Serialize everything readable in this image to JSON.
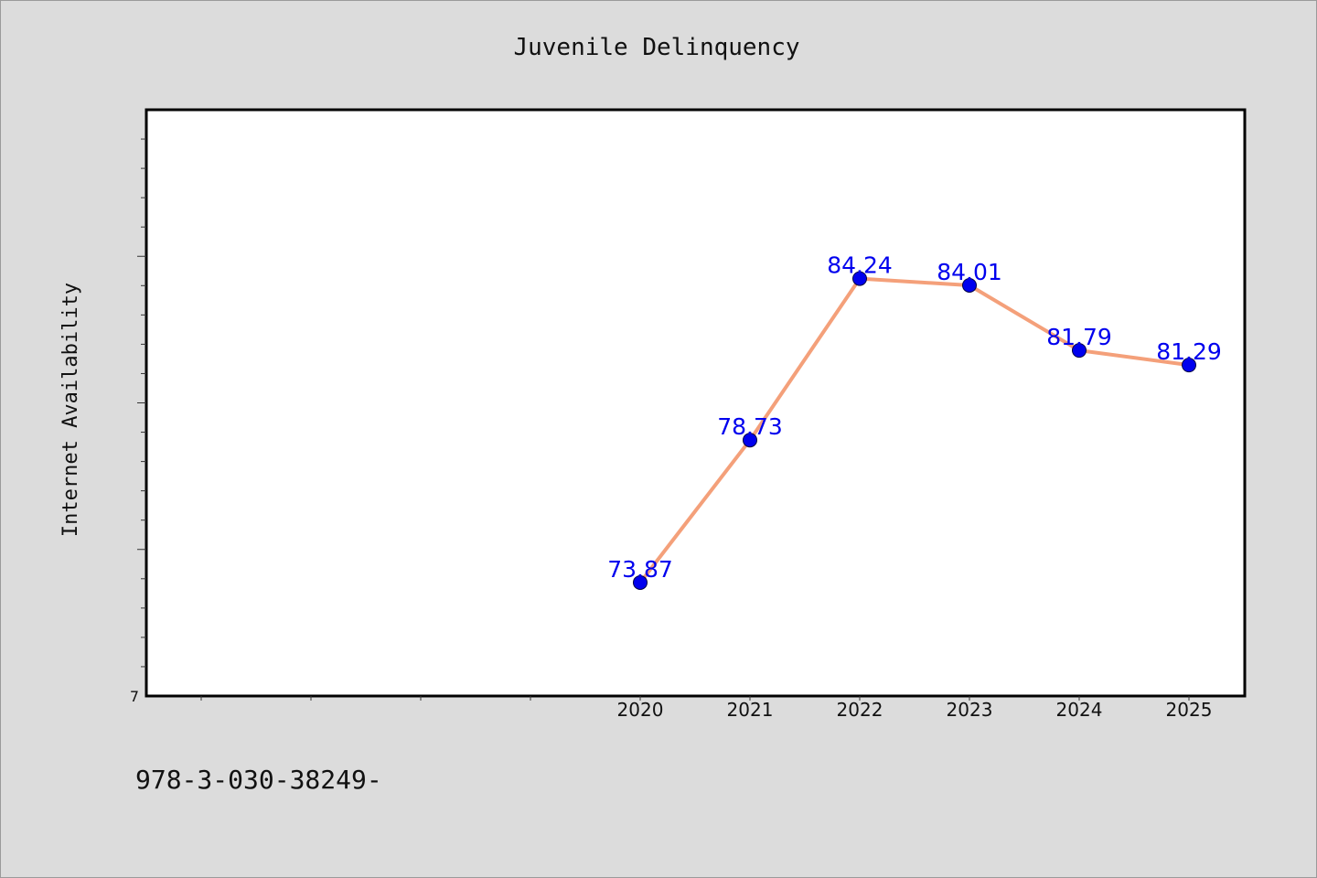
{
  "chart_data": {
    "type": "line",
    "title": "Juvenile Delinquency",
    "xlabel": "",
    "ylabel": "Internet Availability",
    "categories": [
      "2020",
      "2021",
      "2022",
      "2023",
      "2024",
      "2025"
    ],
    "series": [
      {
        "values": [
          73.87,
          78.73,
          84.24,
          84.01,
          81.79,
          81.29
        ]
      }
    ],
    "data_labels": [
      "73.87",
      "78.73",
      "84.24",
      "84.01",
      "81.79",
      "81.29"
    ],
    "ylim": [
      70,
      90
    ],
    "y_tick_labels": [
      "7"
    ],
    "grid": false,
    "line_color": "#f4a07a",
    "marker_color": "#0000ee",
    "label_color": "#0000ee"
  },
  "footer": {
    "text": "978-3-030-38249-"
  }
}
